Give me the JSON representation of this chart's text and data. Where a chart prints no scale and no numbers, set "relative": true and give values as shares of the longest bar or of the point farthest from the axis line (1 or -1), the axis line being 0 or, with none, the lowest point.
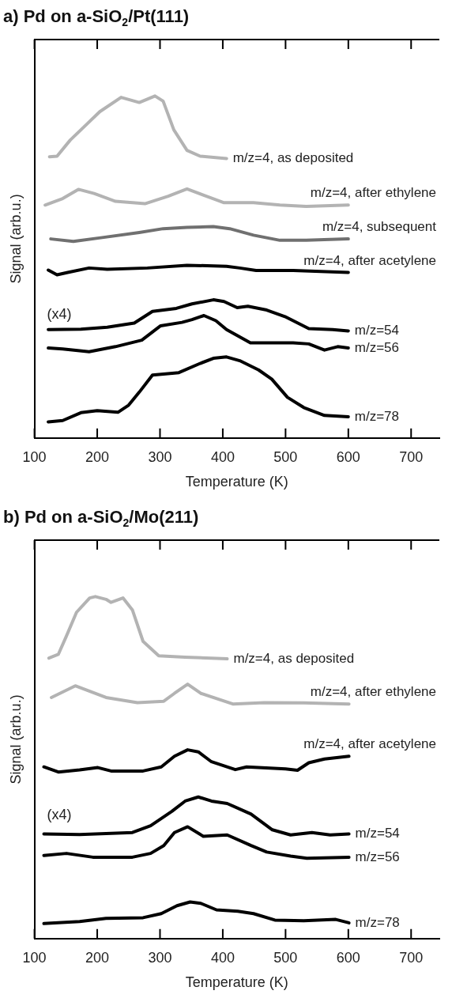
{
  "chart_data": [
    {
      "type": "line",
      "title": "a) Pd on a-SiO$_{2}$/Pt(111)",
      "xlabel": "Temperature (K)",
      "ylabel": "Signal (arb.u.)",
      "relative": true,
      "legend": false,
      "marker": "none",
      "tick_labels": "x",
      "xlim": [
        100,
        745
      ],
      "xticks": [
        100,
        200,
        300,
        400,
        500,
        600,
        700
      ],
      "annotations": [
        "(x4)"
      ],
      "series": [
        {
          "name": "m/z=4, as deposited",
          "color": "#b3b3b3",
          "x": [
            124,
            136,
            157,
            178,
            204,
            238,
            267,
            292,
            305,
            322,
            343,
            364,
            406
          ],
          "values": [
            0.822,
            0.824,
            0.871,
            0.908,
            0.954,
            0.996,
            0.981,
            1.0,
            0.985,
            0.901,
            0.841,
            0.824,
            0.817
          ]
        },
        {
          "name": "m/z=4, after ethylene",
          "color": "#b3b3b3",
          "x": [
            117,
            145,
            170,
            195,
            229,
            276,
            313,
            343,
            368,
            402,
            449,
            491,
            533,
            600
          ],
          "values": [
            0.681,
            0.7,
            0.727,
            0.715,
            0.692,
            0.685,
            0.707,
            0.728,
            0.711,
            0.688,
            0.688,
            0.681,
            0.677,
            0.681
          ]
        },
        {
          "name": "m/z=4, subsequent",
          "color": "#707070",
          "x": [
            126,
            162,
            208,
            267,
            305,
            343,
            385,
            411,
            449,
            491,
            533,
            600
          ],
          "values": [
            0.582,
            0.575,
            0.586,
            0.601,
            0.612,
            0.616,
            0.618,
            0.612,
            0.593,
            0.578,
            0.578,
            0.582
          ]
        },
        {
          "name": "m/z=4, after acetylene",
          "color": "#000000",
          "x": [
            122,
            136,
            153,
            187,
            216,
            280,
            343,
            406,
            427,
            453,
            512,
            600
          ],
          "values": [
            0.491,
            0.477,
            0.484,
            0.497,
            0.493,
            0.497,
            0.505,
            0.502,
            0.497,
            0.49,
            0.49,
            0.484
          ]
        },
        {
          "name": "m/z=54",
          "color": "#000000",
          "x": [
            122,
            174,
            216,
            259,
            288,
            326,
            351,
            385,
            402,
            423,
            440,
            470,
            499,
            537,
            575,
            600
          ],
          "values": [
            0.317,
            0.318,
            0.324,
            0.336,
            0.37,
            0.379,
            0.392,
            0.404,
            0.399,
            0.381,
            0.385,
            0.374,
            0.355,
            0.32,
            0.317,
            0.313
          ]
        },
        {
          "name": "m/z=56",
          "color": "#000000",
          "x": [
            122,
            145,
            187,
            229,
            271,
            301,
            335,
            351,
            370,
            389,
            406,
            444,
            512,
            537,
            562,
            583,
            600
          ],
          "values": [
            0.263,
            0.26,
            0.252,
            0.267,
            0.286,
            0.328,
            0.338,
            0.346,
            0.358,
            0.343,
            0.317,
            0.278,
            0.278,
            0.275,
            0.257,
            0.267,
            0.263
          ]
        },
        {
          "name": "m/z=78",
          "color": "#000000",
          "x": [
            122,
            145,
            174,
            200,
            233,
            250,
            267,
            288,
            330,
            364,
            385,
            406,
            427,
            457,
            478,
            503,
            529,
            562,
            600
          ],
          "values": [
            0.047,
            0.051,
            0.074,
            0.08,
            0.075,
            0.096,
            0.134,
            0.184,
            0.191,
            0.218,
            0.233,
            0.237,
            0.226,
            0.199,
            0.172,
            0.119,
            0.089,
            0.066,
            0.062
          ]
        }
      ]
    },
    {
      "type": "line",
      "title": "b) Pd on a-SiO$_{2}$/Mo(211)",
      "xlabel": "Temperature (K)",
      "ylabel": "Signal (arb.u.)",
      "relative": true,
      "legend": false,
      "marker": "none",
      "tick_labels": "x",
      "xlim": [
        100,
        745
      ],
      "xticks": [
        100,
        200,
        300,
        400,
        500,
        600,
        700
      ],
      "annotations": [
        "(x4)"
      ],
      "series": [
        {
          "name": "m/z=4, as deposited",
          "color": "#b3b3b3",
          "x": [
            123,
            138,
            151,
            167,
            188,
            197,
            214,
            222,
            241,
            256,
            273,
            298,
            340,
            407
          ],
          "values": [
            0.82,
            0.831,
            0.885,
            0.954,
            0.996,
            1.0,
            0.992,
            0.983,
            0.996,
            0.961,
            0.869,
            0.827,
            0.823,
            0.818
          ]
        },
        {
          "name": "m/z=4, after ethylene",
          "color": "#b3b3b3",
          "x": [
            127,
            165,
            214,
            264,
            306,
            323,
            344,
            365,
            416,
            466,
            529,
            601
          ],
          "values": [
            0.705,
            0.739,
            0.705,
            0.69,
            0.694,
            0.717,
            0.744,
            0.717,
            0.686,
            0.69,
            0.689,
            0.686
          ]
        },
        {
          "name": "m/z=4, after acetylene",
          "color": "#000000",
          "x": [
            115,
            138,
            172,
            201,
            222,
            273,
            302,
            323,
            344,
            361,
            382,
            420,
            438,
            500,
            519,
            537,
            562,
            601
          ],
          "values": [
            0.502,
            0.487,
            0.493,
            0.5,
            0.49,
            0.49,
            0.502,
            0.533,
            0.552,
            0.546,
            0.517,
            0.494,
            0.502,
            0.496,
            0.492,
            0.514,
            0.525,
            0.533
          ]
        },
        {
          "name": "m/z=54",
          "color": "#000000",
          "x": [
            115,
            172,
            256,
            285,
            319,
            340,
            361,
            382,
            407,
            445,
            479,
            508,
            542,
            571,
            601
          ],
          "values": [
            0.306,
            0.304,
            0.31,
            0.33,
            0.372,
            0.402,
            0.414,
            0.402,
            0.395,
            0.364,
            0.318,
            0.303,
            0.31,
            0.303,
            0.306
          ]
        },
        {
          "name": "m/z=56",
          "color": "#000000",
          "x": [
            115,
            151,
            193,
            256,
            285,
            306,
            323,
            344,
            369,
            407,
            445,
            470,
            508,
            534,
            601
          ],
          "values": [
            0.243,
            0.249,
            0.238,
            0.238,
            0.249,
            0.272,
            0.31,
            0.327,
            0.299,
            0.303,
            0.272,
            0.253,
            0.241,
            0.235,
            0.238
          ]
        },
        {
          "name": "m/z=78",
          "color": "#000000",
          "x": [
            115,
            172,
            214,
            273,
            302,
            327,
            348,
            365,
            390,
            424,
            449,
            483,
            529,
            580,
            601
          ],
          "values": [
            0.044,
            0.05,
            0.059,
            0.061,
            0.073,
            0.096,
            0.107,
            0.103,
            0.084,
            0.08,
            0.073,
            0.054,
            0.052,
            0.056,
            0.046
          ]
        }
      ]
    }
  ]
}
